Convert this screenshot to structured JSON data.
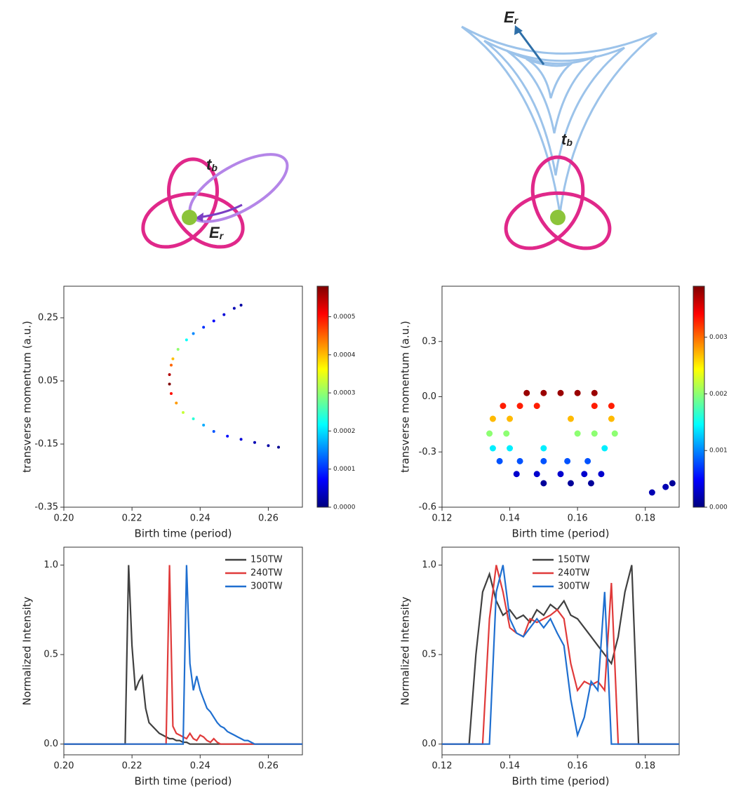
{
  "diagram": {
    "left_labels": [
      {
        "text": "t",
        "sub": "b"
      },
      {
        "text": "E",
        "sub": "r"
      }
    ],
    "right_labels": [
      {
        "text": "E",
        "sub": "r"
      },
      {
        "text": "t",
        "sub": "b"
      }
    ]
  },
  "chart_data": [
    {
      "type": "scatter",
      "xlabel": "Birth time (period)",
      "ylabel": "transverse momentum (a.u.)",
      "xlim": [
        0.2,
        0.27
      ],
      "xticks": [
        {
          "value": 0.2,
          "label": "0.20"
        },
        0.22,
        0.24,
        0.26
      ],
      "ylim": [
        -0.35,
        0.35
      ],
      "yticks": [
        -0.35,
        -0.15,
        0.05,
        0.25
      ],
      "colormap": "jet",
      "clim": [
        0,
        0.00058
      ],
      "cticks": [
        {
          "value": 0,
          "label": "0.0000"
        },
        {
          "value": 0.0001,
          "label": "0.0001"
        },
        {
          "value": 0.0002,
          "label": "0.0002"
        },
        {
          "value": 0.0003,
          "label": "0.0003"
        },
        {
          "value": 0.0004,
          "label": "0.0004"
        },
        {
          "value": 0.0005,
          "label": "0.0005"
        }
      ],
      "x": [
        0.2315,
        0.231,
        0.231,
        0.2315,
        0.232,
        0.2335,
        0.236,
        0.238,
        0.241,
        0.244,
        0.247,
        0.25,
        0.252,
        0.233,
        0.235,
        0.238,
        0.241,
        0.244,
        0.248,
        0.252,
        0.256,
        0.26,
        0.263
      ],
      "values": [
        0.1,
        0.07,
        0.04,
        0.01,
        0.12,
        0.15,
        0.18,
        0.2,
        0.22,
        0.24,
        0.26,
        0.28,
        0.29,
        -0.02,
        -0.05,
        -0.07,
        -0.09,
        -0.11,
        -0.125,
        -0.135,
        -0.145,
        -0.155,
        -0.16
      ],
      "color_values": [
        0.00045,
        0.00055,
        0.00058,
        0.0005,
        0.0004,
        0.0003,
        0.00022,
        0.00015,
        0.0001,
        7e-05,
        5e-05,
        3e-05,
        2e-05,
        0.00042,
        0.00033,
        0.00024,
        0.00017,
        0.00012,
        8e-05,
        5e-05,
        3e-05,
        2e-05,
        1e-05
      ]
    },
    {
      "type": "scatter",
      "xlabel": "Birth time (period)",
      "ylabel": "transverse momentum (a.u.)",
      "xlim": [
        0.12,
        0.19
      ],
      "xticks": [
        0.12,
        0.14,
        0.16,
        0.18
      ],
      "ylim": [
        -0.6,
        0.6
      ],
      "yticks": [
        -0.6,
        -0.3,
        {
          "value": 0,
          "label": "0.0"
        },
        0.3
      ],
      "colormap": "jet",
      "clim": [
        0,
        0.0039
      ],
      "cticks": [
        {
          "value": 0,
          "label": "0.000"
        },
        {
          "value": 0.001,
          "label": "0.001"
        },
        {
          "value": 0.002,
          "label": "0.002"
        },
        {
          "value": 0.003,
          "label": "0.003"
        }
      ],
      "x": [
        0.145,
        0.15,
        0.155,
        0.16,
        0.165,
        0.138,
        0.143,
        0.148,
        0.165,
        0.17,
        0.135,
        0.14,
        0.158,
        0.17,
        0.134,
        0.139,
        0.16,
        0.165,
        0.171,
        0.135,
        0.14,
        0.15,
        0.168,
        0.137,
        0.143,
        0.15,
        0.157,
        0.163,
        0.142,
        0.148,
        0.155,
        0.162,
        0.167,
        0.15,
        0.158,
        0.164,
        0.182,
        0.186,
        0.188
      ],
      "values": [
        0.02,
        0.02,
        0.02,
        0.02,
        0.02,
        -0.05,
        -0.05,
        -0.05,
        -0.05,
        -0.05,
        -0.12,
        -0.12,
        -0.12,
        -0.12,
        -0.2,
        -0.2,
        -0.2,
        -0.2,
        -0.2,
        -0.28,
        -0.28,
        -0.28,
        -0.28,
        -0.35,
        -0.35,
        -0.35,
        -0.35,
        -0.35,
        -0.42,
        -0.42,
        -0.42,
        -0.42,
        -0.42,
        -0.47,
        -0.47,
        -0.47,
        -0.52,
        -0.49,
        -0.47
      ],
      "color_values": [
        0.0038,
        0.0038,
        0.0038,
        0.0038,
        0.0038,
        0.0033,
        0.0033,
        0.0033,
        0.0033,
        0.0033,
        0.0027,
        0.0027,
        0.0027,
        0.0027,
        0.002,
        0.002,
        0.002,
        0.002,
        0.002,
        0.0014,
        0.0014,
        0.0014,
        0.0014,
        0.0008,
        0.0008,
        0.0008,
        0.0008,
        0.0008,
        0.0003,
        0.0003,
        0.0003,
        0.0003,
        0.0003,
        0.0001,
        0.0001,
        0.0001,
        0.0002,
        0.0002,
        0.0001
      ]
    },
    {
      "type": "line",
      "xlabel": "Birth time (period)",
      "ylabel": "Normalized Intensity",
      "legend": "upper right",
      "xlim": [
        0.2,
        0.27
      ],
      "xticks": [
        {
          "value": 0.2,
          "label": "0.20"
        },
        0.22,
        0.24,
        0.26
      ],
      "ylim": [
        -0.06,
        1.1
      ],
      "yticks": [
        {
          "value": 0,
          "label": "0.0"
        },
        0.5,
        {
          "value": 1,
          "label": "1.0"
        }
      ],
      "x": [
        0.2,
        0.201,
        0.202,
        0.203,
        0.204,
        0.205,
        0.206,
        0.207,
        0.208,
        0.209,
        0.21,
        0.211,
        0.212,
        0.213,
        0.214,
        0.215,
        0.216,
        0.217,
        0.218,
        0.219,
        0.22,
        0.221,
        0.222,
        0.223,
        0.224,
        0.225,
        0.226,
        0.227,
        0.228,
        0.229,
        0.23,
        0.231,
        0.232,
        0.233,
        0.234,
        0.235,
        0.236,
        0.237,
        0.238,
        0.239,
        0.24,
        0.241,
        0.242,
        0.243,
        0.244,
        0.245,
        0.246,
        0.247,
        0.248,
        0.249,
        0.25,
        0.251,
        0.252,
        0.253,
        0.254,
        0.255,
        0.256,
        0.257,
        0.258,
        0.259,
        0.26,
        0.261,
        0.262,
        0.263,
        0.264,
        0.265,
        0.266,
        0.267,
        0.268,
        0.269,
        0.27
      ],
      "series": [
        {
          "name": "150TW",
          "color": "#404040",
          "values": [
            0,
            0,
            0,
            0,
            0,
            0,
            0,
            0,
            0,
            0,
            0,
            0,
            0,
            0,
            0,
            0,
            0,
            0,
            0,
            1.0,
            0.55,
            0.3,
            0.35,
            0.38,
            0.2,
            0.12,
            0.1,
            0.08,
            0.06,
            0.05,
            0.04,
            0.03,
            0.03,
            0.02,
            0.02,
            0.01,
            0.01,
            0,
            0,
            0,
            0,
            0,
            0,
            0,
            0,
            0,
            0,
            0,
            0,
            0,
            0,
            0,
            0,
            0,
            0,
            0,
            0,
            0,
            0,
            0,
            0,
            0,
            0,
            0,
            0,
            0,
            0,
            0,
            0,
            0,
            0
          ]
        },
        {
          "name": "240TW",
          "color": "#e03a3a",
          "values": [
            0,
            0,
            0,
            0,
            0,
            0,
            0,
            0,
            0,
            0,
            0,
            0,
            0,
            0,
            0,
            0,
            0,
            0,
            0,
            0,
            0,
            0,
            0,
            0,
            0,
            0,
            0,
            0,
            0,
            0,
            0,
            1.0,
            0.1,
            0.06,
            0.05,
            0.04,
            0.03,
            0.06,
            0.03,
            0.02,
            0.05,
            0.04,
            0.02,
            0.01,
            0.03,
            0.01,
            0,
            0,
            0,
            0,
            0,
            0,
            0,
            0,
            0,
            0,
            0,
            0,
            0,
            0,
            0,
            0,
            0,
            0,
            0,
            0,
            0,
            0,
            0,
            0,
            0
          ]
        },
        {
          "name": "300TW",
          "color": "#1f6fd0",
          "values": [
            0,
            0,
            0,
            0,
            0,
            0,
            0,
            0,
            0,
            0,
            0,
            0,
            0,
            0,
            0,
            0,
            0,
            0,
            0,
            0,
            0,
            0,
            0,
            0,
            0,
            0,
            0,
            0,
            0,
            0,
            0,
            0,
            0,
            0,
            0,
            0,
            1.0,
            0.45,
            0.3,
            0.38,
            0.3,
            0.25,
            0.2,
            0.18,
            0.15,
            0.12,
            0.1,
            0.09,
            0.07,
            0.06,
            0.05,
            0.04,
            0.03,
            0.02,
            0.02,
            0.01,
            0,
            0,
            0,
            0,
            0,
            0,
            0,
            0,
            0,
            0,
            0,
            0,
            0,
            0,
            0
          ]
        }
      ]
    },
    {
      "type": "line",
      "xlabel": "Birth time (period)",
      "ylabel": "Normalized Intensity",
      "legend": "upper center",
      "xlim": [
        0.12,
        0.19
      ],
      "xticks": [
        0.12,
        0.14,
        0.16,
        0.18
      ],
      "ylim": [
        -0.06,
        1.1
      ],
      "yticks": [
        {
          "value": 0,
          "label": "0.0"
        },
        0.5,
        {
          "value": 1,
          "label": "1.0"
        }
      ],
      "x": [
        0.12,
        0.122,
        0.124,
        0.126,
        0.128,
        0.13,
        0.132,
        0.134,
        0.136,
        0.138,
        0.14,
        0.142,
        0.144,
        0.146,
        0.148,
        0.15,
        0.152,
        0.154,
        0.156,
        0.158,
        0.16,
        0.162,
        0.164,
        0.166,
        0.168,
        0.17,
        0.172,
        0.174,
        0.176,
        0.178,
        0.18,
        0.182,
        0.184,
        0.186,
        0.188,
        0.19
      ],
      "series": [
        {
          "name": "150TW",
          "color": "#404040",
          "values": [
            0,
            0,
            0,
            0,
            0,
            0.5,
            0.85,
            0.95,
            0.8,
            0.72,
            0.75,
            0.7,
            0.72,
            0.68,
            0.75,
            0.72,
            0.78,
            0.75,
            0.8,
            0.72,
            0.7,
            0.65,
            0.6,
            0.55,
            0.5,
            0.45,
            0.6,
            0.85,
            1.0,
            0,
            0,
            0,
            0,
            0,
            0,
            0
          ]
        },
        {
          "name": "240TW",
          "color": "#e03a3a",
          "values": [
            0,
            0,
            0,
            0,
            0,
            0,
            0,
            0.7,
            1.0,
            0.85,
            0.65,
            0.62,
            0.6,
            0.7,
            0.68,
            0.7,
            0.72,
            0.75,
            0.7,
            0.45,
            0.3,
            0.35,
            0.33,
            0.35,
            0.3,
            0.9,
            0,
            0,
            0,
            0,
            0,
            0,
            0,
            0,
            0,
            0
          ]
        },
        {
          "name": "300TW",
          "color": "#1f6fd0",
          "values": [
            0,
            0,
            0,
            0,
            0,
            0,
            0,
            0,
            0.85,
            1.0,
            0.7,
            0.62,
            0.6,
            0.65,
            0.7,
            0.65,
            0.7,
            0.62,
            0.55,
            0.25,
            0.05,
            0.15,
            0.35,
            0.3,
            0.85,
            0,
            0,
            0,
            0,
            0,
            0,
            0,
            0,
            0,
            0,
            0
          ]
        }
      ]
    }
  ]
}
